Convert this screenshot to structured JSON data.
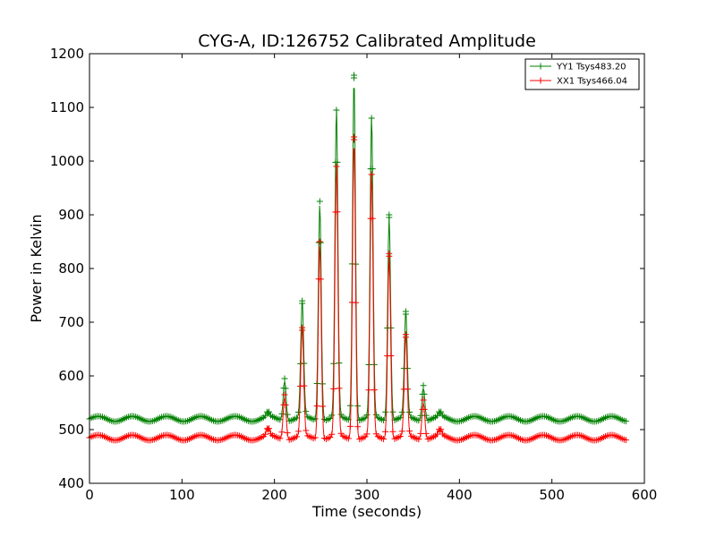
{
  "chart_data": {
    "type": "line",
    "title": "CYG-A, ID:126752 Calibrated Amplitude",
    "xlabel": "Time (seconds)",
    "ylabel": "Power in Kelvin",
    "xlim": [
      0,
      600
    ],
    "ylim": [
      400,
      1200
    ],
    "xticks": [
      0,
      100,
      200,
      300,
      400,
      500,
      600
    ],
    "yticks": [
      400,
      500,
      600,
      700,
      800,
      900,
      1000,
      1100,
      1200
    ],
    "grid": false,
    "legend_position": "top-right",
    "series": [
      {
        "name": "YY1 Tsys483.20",
        "color": "#008000",
        "marker": "+",
        "t_start": 0,
        "t_end": 580,
        "baseline": 520,
        "ripple_amplitude": 5,
        "ripple_period_seconds": 37,
        "peaks": [
          {
            "x": 193,
            "y": 530
          },
          {
            "x": 211,
            "y": 595
          },
          {
            "x": 230,
            "y": 735
          },
          {
            "x": 249,
            "y": 925
          },
          {
            "x": 267,
            "y": 1095
          },
          {
            "x": 286,
            "y": 1160
          },
          {
            "x": 305,
            "y": 1080
          },
          {
            "x": 324,
            "y": 900
          },
          {
            "x": 342,
            "y": 715
          },
          {
            "x": 361,
            "y": 582
          },
          {
            "x": 379,
            "y": 530
          }
        ]
      },
      {
        "name": "XX1 Tsys466.04",
        "color": "#ff0000",
        "marker": "+",
        "t_start": 0,
        "t_end": 580,
        "baseline": 485,
        "ripple_amplitude": 5,
        "ripple_period_seconds": 37,
        "peaks": [
          {
            "x": 193,
            "y": 500
          },
          {
            "x": 211,
            "y": 565
          },
          {
            "x": 230,
            "y": 685
          },
          {
            "x": 249,
            "y": 850
          },
          {
            "x": 267,
            "y": 990
          },
          {
            "x": 286,
            "y": 1045
          },
          {
            "x": 305,
            "y": 975
          },
          {
            "x": 324,
            "y": 828
          },
          {
            "x": 342,
            "y": 672
          },
          {
            "x": 361,
            "y": 555
          },
          {
            "x": 379,
            "y": 498
          }
        ]
      }
    ]
  }
}
